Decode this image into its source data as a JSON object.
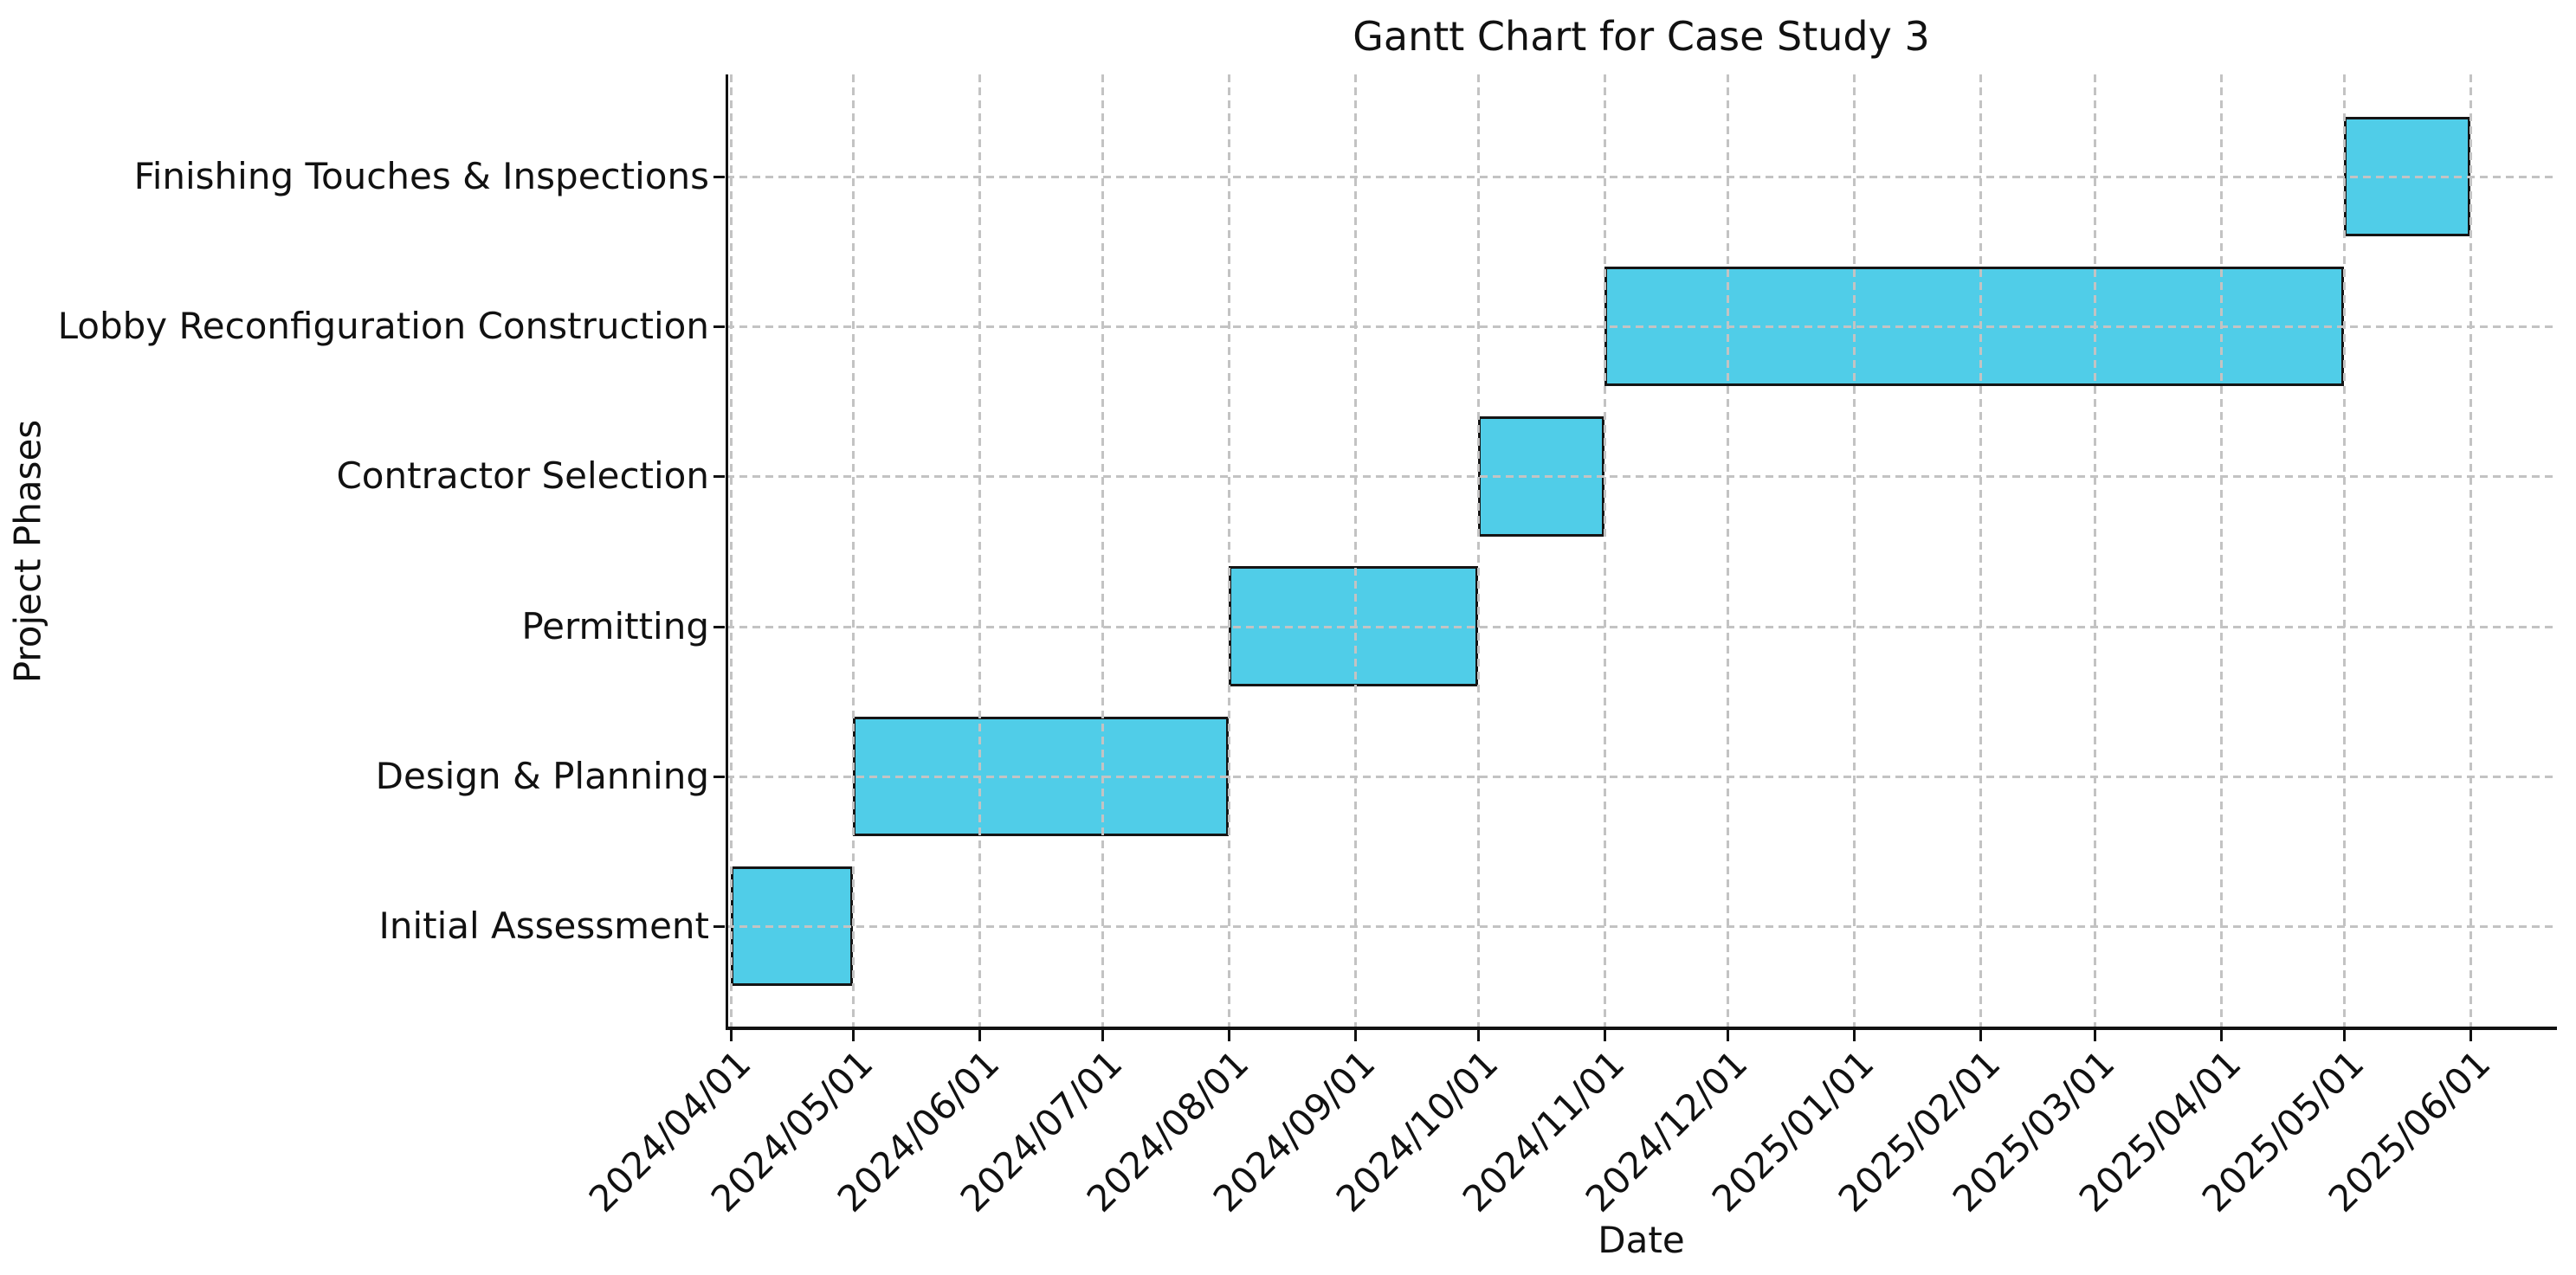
{
  "figure": {
    "title": "Gantt Chart for Case Study 3",
    "background": "#ffffff"
  },
  "axes": {
    "xlabel": "Date",
    "ylabel": "Project Phases",
    "text_color": "#111111",
    "spine_color": "#111111",
    "grid_color": "#c3c3c3",
    "visible_spines": [
      "left",
      "bottom"
    ]
  },
  "chart_data": {
    "type": "bar",
    "subtype": "horizontal-gantt",
    "title": "Gantt Chart for Case Study 3",
    "xlabel": "Date",
    "ylabel": "Project Phases",
    "grid": true,
    "grid_style": "dashed",
    "grid_above_bars": true,
    "bar_fill": "#50CDE8",
    "bar_edge": "#151515",
    "xlim": [
      "2024-03-31",
      "2025-06-22"
    ],
    "x_tick_labels": [
      "2024/04/01",
      "2024/05/01",
      "2024/06/01",
      "2024/07/01",
      "2024/08/01",
      "2024/09/01",
      "2024/10/01",
      "2024/11/01",
      "2024/12/01",
      "2025/01/01",
      "2025/02/01",
      "2025/03/01",
      "2025/04/01",
      "2025/05/01",
      "2025/06/01"
    ],
    "tasks": [
      {
        "label": "Finishing Touches & Inspections",
        "start": "2025-05-01",
        "end": "2025-06-01"
      },
      {
        "label": "Lobby Reconfiguration Construction",
        "start": "2024-11-01",
        "end": "2025-05-01"
      },
      {
        "label": "Contractor Selection",
        "start": "2024-10-01",
        "end": "2024-11-01"
      },
      {
        "label": "Permitting",
        "start": "2024-08-01",
        "end": "2024-10-01"
      },
      {
        "label": "Design & Planning",
        "start": "2024-05-01",
        "end": "2024-08-01"
      },
      {
        "label": "Initial Assessment",
        "start": "2024-04-01",
        "end": "2024-05-01"
      }
    ]
  }
}
